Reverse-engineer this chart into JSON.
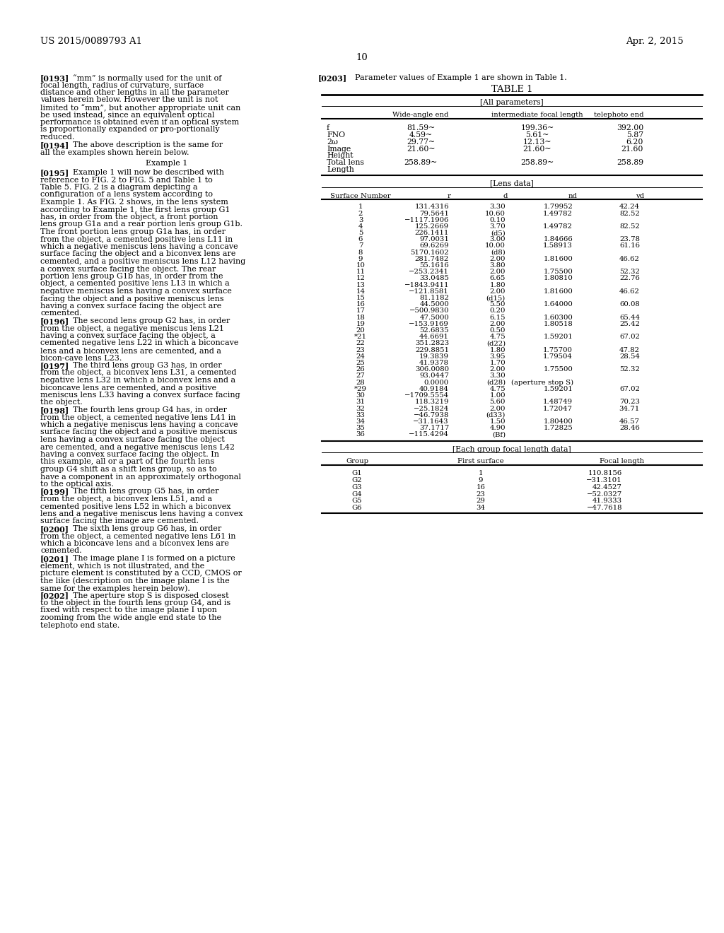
{
  "page_header_left": "US 2015/0089793 A1",
  "page_header_right": "Apr. 2, 2015",
  "page_number": "10",
  "all_params_rows": [
    [
      "f",
      "81.59~",
      "199.36~",
      "392.00"
    ],
    [
      "FNO",
      "4.59~",
      "5.61~",
      "5.87"
    ],
    [
      "2ω",
      "29.77~",
      "12.13~",
      "6.20"
    ],
    [
      "Image",
      "21.60~",
      "21.60~",
      "21.60"
    ],
    [
      "Height",
      "",
      "",
      ""
    ],
    [
      "Total lens",
      "258.89~",
      "258.89~",
      "258.89"
    ],
    [
      "Length",
      "",
      "",
      ""
    ]
  ],
  "lens_rows": [
    [
      "1",
      "131.4316",
      "3.30",
      "1.79952",
      "42.24"
    ],
    [
      "2",
      "79.5641",
      "10.60",
      "1.49782",
      "82.52"
    ],
    [
      "3",
      "−1117.1906",
      "0.10",
      "",
      ""
    ],
    [
      "4",
      "125.2669",
      "3.70",
      "1.49782",
      "82.52"
    ],
    [
      "5",
      "226.1411",
      "(d5)",
      "",
      ""
    ],
    [
      "6",
      "97.0031",
      "3.00",
      "1.84666",
      "23.78"
    ],
    [
      "7",
      "69.6269",
      "10.00",
      "1.58913",
      "61.16"
    ],
    [
      "8",
      "5170.1602",
      "(d8)",
      "",
      ""
    ],
    [
      "9",
      "281.7482",
      "2.00",
      "1.81600",
      "46.62"
    ],
    [
      "10",
      "55.1616",
      "3.80",
      "",
      ""
    ],
    [
      "11",
      "−253.2341",
      "2.00",
      "1.75500",
      "52.32"
    ],
    [
      "12",
      "33.0485",
      "6.65",
      "1.80810",
      "22.76"
    ],
    [
      "13",
      "−1843.9411",
      "1.80",
      "",
      ""
    ],
    [
      "14",
      "−121.8581",
      "2.00",
      "1.81600",
      "46.62"
    ],
    [
      "15",
      "81.1182",
      "(d15)",
      "",
      ""
    ],
    [
      "16",
      "44.5000",
      "5.50",
      "1.64000",
      "60.08"
    ],
    [
      "17",
      "−500.9830",
      "0.20",
      "",
      ""
    ],
    [
      "18",
      "47.5000",
      "6.15",
      "1.60300",
      "65.44"
    ],
    [
      "19",
      "−153.9169",
      "2.00",
      "1.80518",
      "25.42"
    ],
    [
      "20",
      "52.6835",
      "0.50",
      "",
      ""
    ],
    [
      "*21",
      "44.6691",
      "4.75",
      "1.59201",
      "67.02"
    ],
    [
      "22",
      "351.2823",
      "(d22)",
      "",
      ""
    ],
    [
      "23",
      "229.8851",
      "1.80",
      "1.75700",
      "47.82"
    ],
    [
      "24",
      "19.3839",
      "3.95",
      "1.79504",
      "28.54"
    ],
    [
      "25",
      "41.9378",
      "1.70",
      "",
      ""
    ],
    [
      "26",
      "306.0080",
      "2.00",
      "1.75500",
      "52.32"
    ],
    [
      "27",
      "93.0447",
      "3.30",
      "",
      ""
    ],
    [
      "28",
      "0.0000",
      "(d28)",
      "(aperture stop S)",
      ""
    ],
    [
      "*29",
      "40.9184",
      "4.75",
      "1.59201",
      "67.02"
    ],
    [
      "30",
      "−1709.5554",
      "1.00",
      "",
      ""
    ],
    [
      "31",
      "118.3219",
      "5.60",
      "1.48749",
      "70.23"
    ],
    [
      "32",
      "−25.1824",
      "2.00",
      "1.72047",
      "34.71"
    ],
    [
      "33",
      "−46.7938",
      "(d33)",
      "",
      ""
    ],
    [
      "34",
      "−31.1643",
      "1.50",
      "1.80400",
      "46.57"
    ],
    [
      "35",
      "37.1717",
      "4.90",
      "1.72825",
      "28.46"
    ],
    [
      "36",
      "−115.4294",
      "(Bf)",
      "",
      ""
    ]
  ],
  "focal_rows": [
    [
      "G1",
      "1",
      "110.8156"
    ],
    [
      "G2",
      "9",
      "−31.3101"
    ],
    [
      "G3",
      "16",
      "42.4527"
    ],
    [
      "G4",
      "23",
      "−52.0327"
    ],
    [
      "G5",
      "29",
      "41.9333"
    ],
    [
      "G6",
      "34",
      "−47.7618"
    ]
  ]
}
